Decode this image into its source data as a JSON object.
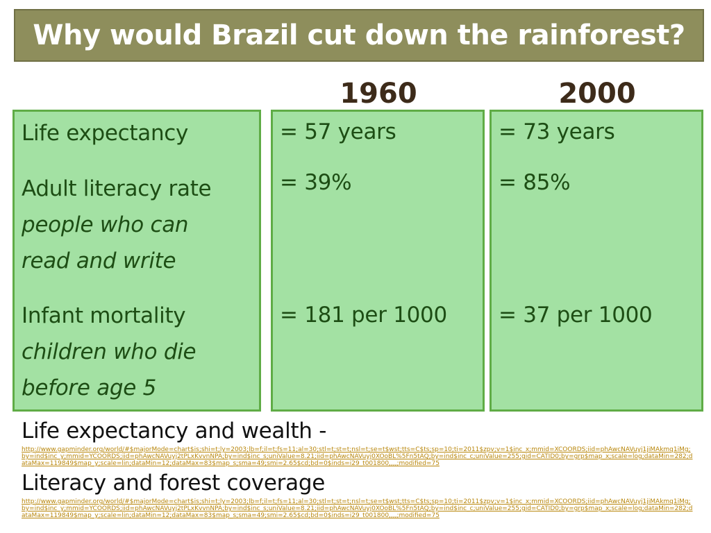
{
  "title": "Why would Brazil cut down the rainforest?",
  "years": [
    "1960",
    "2000"
  ],
  "labels": {
    "life_expectancy": "Life expectancy",
    "literacy": "Adult literacy rate",
    "literacy_def_1": "people who can",
    "literacy_def_2": "read and write",
    "infant_mortality": "Infant mortality",
    "infant_def_1": "children who die",
    "infant_def_2": "before age 5"
  },
  "values_1960": {
    "life_expectancy": "= 57 years",
    "literacy": "= 39%",
    "infant_mortality": "= 181  per 1000"
  },
  "values_2000": {
    "life_expectancy": "= 73 years",
    "literacy": "= 85%",
    "infant_mortality": "= 37  per 1000"
  },
  "links": [
    {
      "label": "Life expectancy and wealth -",
      "url": "http://www.gapminder.org/world/#$majorMode=chart$is;shi=t;ly=2003;lb=f;il=t;fs=11;al=30;stl=t;st=t;nsl=t;se=t$wst;tts=C$ts;sp=10;ti=2011$zpv;v=1$inc_x;mmid=XCOORDS;iid=phAwcNAVuyj1jiMAkmq1iMg;by=ind$inc_y;mmid=YCOORDS;iid=phAwcNAVuyj2tPLxKvvnNPA;by=ind$inc_s;uniValue=8.21;iid=phAwcNAVuyj0XOoBL%5Fn5tAQ;by=ind$inc_c;uniValue=255;gid=CATID0;by=grp$map_x;scale=log;dataMin=282;dataMax=119849$map_y;scale=lin;dataMin=12;dataMax=83$map_s;sma=49;smi=2.65$cd;bd=0$inds=i29_t001800,,,,;modified=75"
    },
    {
      "label": "Literacy and forest coverage",
      "url": "http://www.gapminder.org/world/#$majorMode=chart$is;shi=t;ly=2003;lb=f;il=t;fs=11;al=30;stl=t;st=t;nsl=t;se=t$wst;tts=C$ts;sp=10;ti=2011$zpv;v=1$inc_x;mmid=XCOORDS;iid=phAwcNAVuyj1jiMAkmq1iMg;by=ind$inc_y;mmid=YCOORDS;iid=phAwcNAVuyj2tPLxKvvnNPA;by=ind$inc_s;uniValue=8.21;iid=phAwcNAVuyj0XOoBL%5Fn5tAQ;by=ind$inc_c;uniValue=255;gid=CATID0;by=grp$map_x;scale=log;dataMin=282;dataMax=119849$map_y;scale=lin;dataMin=12;dataMax=83$map_s;sma=49;smi=2.65$cd;bd=0$inds=i29_t001800,,,,;modified=75"
    }
  ],
  "colors": {
    "title_bg": "#8e8e5c",
    "box_fill": "#a3e1a3",
    "box_border": "#5fac46",
    "box_text": "#1d4d14",
    "year_text": "#3d2b1a",
    "link": "#b8860b"
  }
}
